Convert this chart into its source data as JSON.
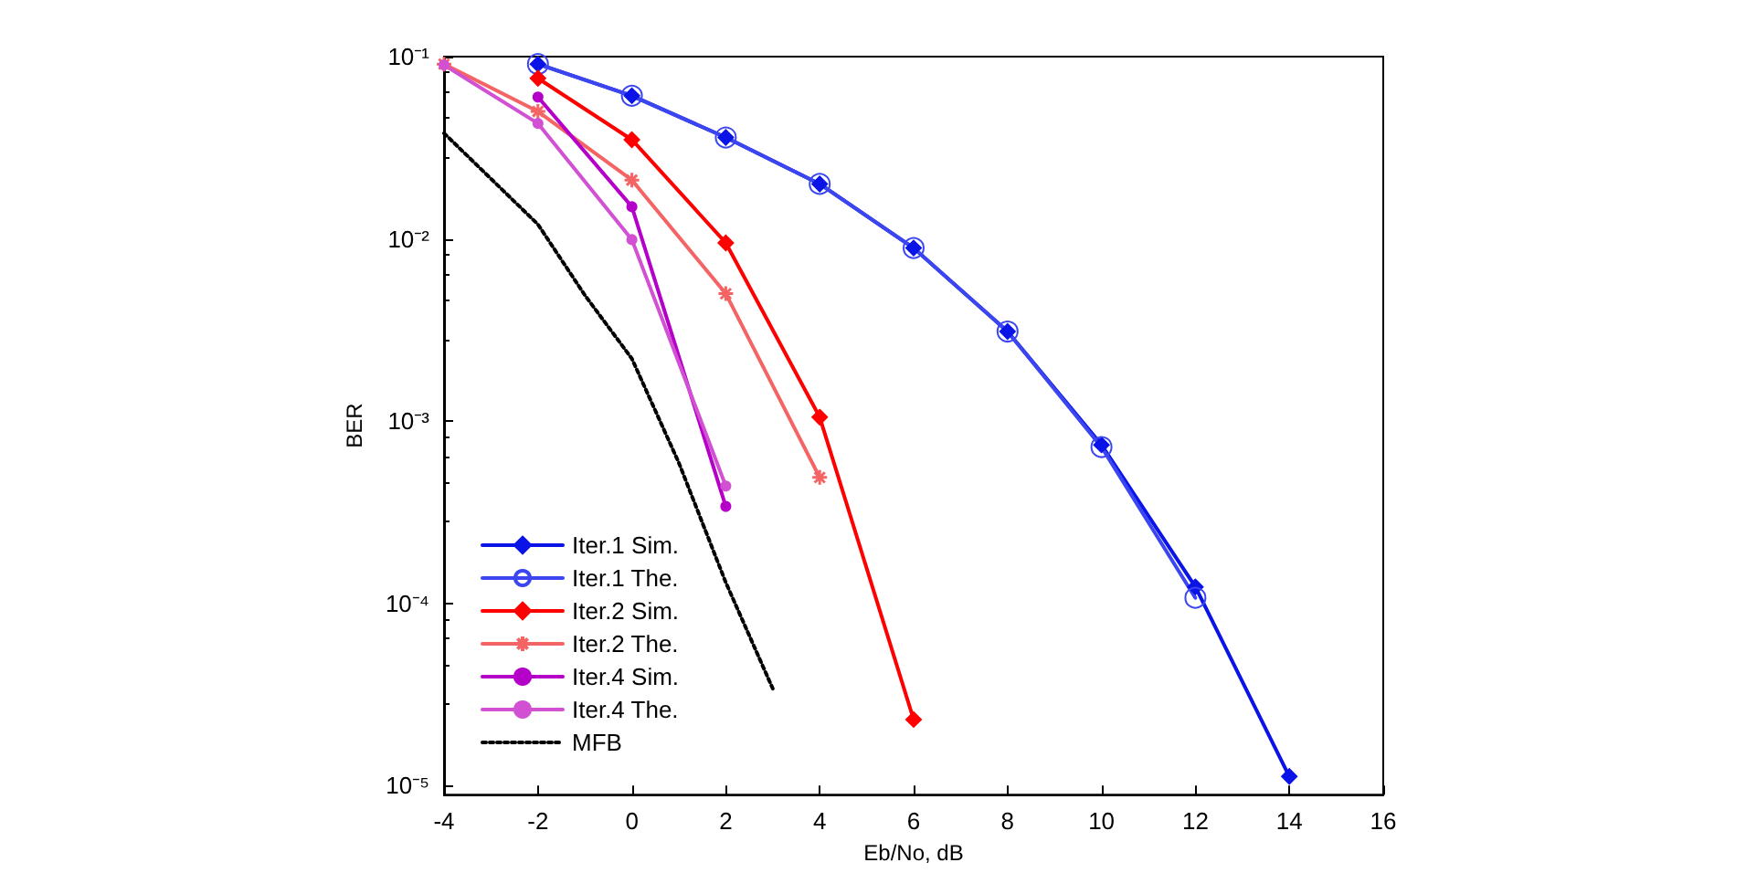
{
  "chart_data": {
    "type": "line",
    "xlabel": "Eb/No, dB",
    "ylabel": "BER",
    "log": "y",
    "grid": false,
    "legend": "bottom left",
    "xlim": [
      -4,
      16
    ],
    "xticks": [
      -4,
      -2,
      0,
      2,
      4,
      6,
      8,
      10,
      12,
      14,
      16
    ],
    "ylim": [
      8.9e-06,
      0.1
    ],
    "yticks": [
      {
        "value": 1e-05,
        "label": "10⁻⁵"
      },
      {
        "value": 0.0001,
        "label": "10⁻⁴"
      },
      {
        "value": 0.001,
        "label": "10⁻³"
      },
      {
        "value": 0.01,
        "label": "10⁻²"
      },
      {
        "value": 0.1,
        "label": "10⁻¹"
      }
    ],
    "series": [
      {
        "name": "Iter.1 Sim.",
        "color": "#0a14e6",
        "marker": "diamond",
        "line_style": "solid",
        "x": [
          -2,
          0,
          2,
          4,
          6,
          8,
          10,
          12,
          14
        ],
        "values": [
          0.091,
          0.061,
          0.036,
          0.02,
          0.0089,
          0.0031,
          0.00074,
          0.000123,
          1.12e-05
        ]
      },
      {
        "name": "Iter.1 The.",
        "color": "#3c46f0",
        "marker": "circle",
        "line_style": "solid",
        "x": [
          -2,
          0,
          2,
          4,
          6,
          8,
          10,
          12
        ],
        "values": [
          0.091,
          0.061,
          0.036,
          0.02,
          0.0089,
          0.0031,
          0.00072,
          0.000107
        ]
      },
      {
        "name": "Iter.2 Sim.",
        "color": "#ff0000",
        "marker": "diamond",
        "line_style": "solid",
        "x": [
          -2,
          0,
          2,
          4,
          6
        ],
        "values": [
          0.076,
          0.035,
          0.0095,
          0.00105,
          2.3e-05
        ]
      },
      {
        "name": "Iter.2 The.",
        "color": "#f46464",
        "marker": "cross",
        "line_style": "solid",
        "x": [
          -4,
          -2,
          0,
          2,
          4
        ],
        "values": [
          0.091,
          0.05,
          0.021,
          0.005,
          0.00049
        ]
      },
      {
        "name": "Iter.4 Sim.",
        "color": "#b400c8",
        "marker": "circle",
        "line_style": "solid",
        "x": [
          -2,
          0,
          2
        ],
        "values": [
          0.06,
          0.015,
          0.00034
        ]
      },
      {
        "name": "Iter.4 The.",
        "color": "#d250d2",
        "marker": "circle",
        "line_style": "solid",
        "x": [
          -4,
          -2,
          0,
          2
        ],
        "values": [
          0.09,
          0.043,
          0.0099,
          0.00044
        ]
      },
      {
        "name": "MFB",
        "color": "#000000",
        "marker": "none",
        "line_style": "dotted",
        "x": [
          -4,
          -2,
          -1,
          0,
          1,
          2,
          3
        ],
        "values": [
          0.038,
          0.012,
          0.0049,
          0.0022,
          0.00059,
          0.00013,
          3.4e-05
        ]
      }
    ]
  }
}
